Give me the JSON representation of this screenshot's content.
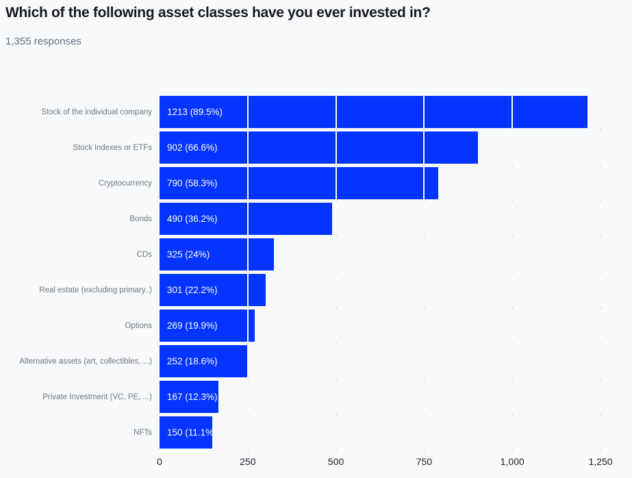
{
  "header": {
    "title": "Which of the following asset classes have you ever invested in?",
    "responses_label": "1,355 responses"
  },
  "colors": {
    "bar": "#0434ff",
    "background": "#f8f9fa",
    "gridline": "#e1e2e4",
    "gridline_over_bar": "#fafbfc",
    "title_text": "#16191d",
    "subtitle_text": "#61707e",
    "category_label_text": "#6f7680",
    "axis_label_text": "#212327",
    "bar_label_text": "#ffffff"
  },
  "chart_data": {
    "type": "bar",
    "orientation": "horizontal",
    "title": "Which of the following asset classes have you ever invested in?",
    "subtitle": "1,355 responses",
    "categories": [
      "Stock of the individual company",
      "Stock indexes or ETFs",
      "Cryptocurrency",
      "Bonds",
      "CDs",
      "Real estate (excluding primary..)",
      "Options",
      "Alternative assets (art, collectibles, ...)",
      "Private Investment (VC, PE, ...)",
      "NFTs"
    ],
    "values": [
      1213,
      902,
      790,
      490,
      325,
      301,
      269,
      252,
      167,
      150
    ],
    "percentages": [
      89.5,
      66.6,
      58.3,
      36.2,
      24,
      22.2,
      19.9,
      18.6,
      12.3,
      11.1
    ],
    "bar_labels": [
      "1213 (89.5%)",
      "902 (66.6%)",
      "790 (58.3%)",
      "490 (36.2%)",
      "325 (24%)",
      "301 (22.2%)",
      "269 (19.9%)",
      "252 (18.6%)",
      "167 (12.3%)",
      "150 (11.1%)"
    ],
    "xlabel": "",
    "ylabel": "",
    "xlim": [
      0,
      1250
    ],
    "x_tick_values": [
      0,
      250,
      500,
      750,
      1000,
      1250
    ],
    "x_tick_labels": [
      "0",
      "250",
      "500",
      "750",
      "1,000",
      "1,250"
    ],
    "grid": true,
    "legend": false
  }
}
